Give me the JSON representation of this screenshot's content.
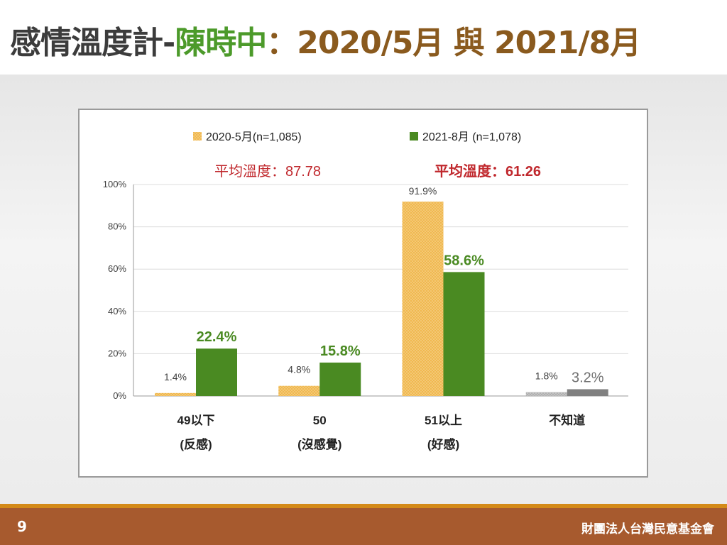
{
  "title": {
    "main": "感情溫度計-",
    "name": "陳時中",
    "colon": "：",
    "dates": "2020/5月 與 2021/8月"
  },
  "footer": {
    "page": "9",
    "org": "財團法人台灣民意基金會"
  },
  "chart_data": {
    "type": "bar",
    "categories": [
      {
        "line1": "49以下",
        "line2": "(反感)"
      },
      {
        "line1": "50",
        "line2": "(沒感覺)"
      },
      {
        "line1": "51以上",
        "line2": "(好感)"
      },
      {
        "line1": "不知道",
        "line2": ""
      }
    ],
    "series": [
      {
        "name": "2020-5月(n=1,085)",
        "values": [
          1.4,
          4.8,
          91.9,
          1.8
        ],
        "labels": [
          "1.4%",
          "4.8%",
          "91.9%",
          "1.8%"
        ],
        "color": "#f0b850"
      },
      {
        "name": "2021-8月  (n=1,078)",
        "values": [
          22.4,
          15.8,
          58.6,
          3.2
        ],
        "labels": [
          "22.4%",
          "15.8%",
          "58.6%",
          "3.2%"
        ],
        "color": "#4a8a22"
      }
    ],
    "dont_know_colors": [
      "#b8b8b8",
      "#808080"
    ],
    "averages": [
      "平均溫度：87.78",
      "平均溫度：61.26"
    ],
    "yticks": [
      "0%",
      "20%",
      "40%",
      "60%",
      "80%",
      "100%"
    ],
    "ylim": [
      0,
      100
    ],
    "legend_position": "top"
  }
}
